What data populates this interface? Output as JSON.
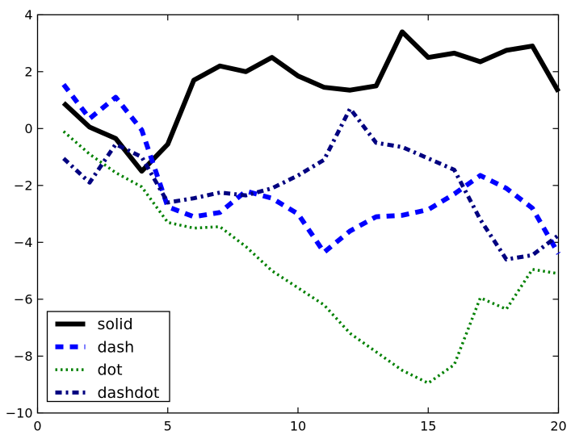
{
  "figure": {
    "background": "#ffffff",
    "axes_background": "#ffffff",
    "frame_color": "#000000"
  },
  "chart_data": {
    "type": "line",
    "title": "",
    "xlabel": "",
    "ylabel": "",
    "xlim": [
      0,
      20
    ],
    "ylim": [
      -10,
      4
    ],
    "grid": false,
    "tick_direction": "in",
    "xticks": {
      "values": [
        0,
        5,
        10,
        15,
        20
      ],
      "labels": [
        "0",
        "5",
        "10",
        "15",
        "20"
      ]
    },
    "yticks": {
      "values": [
        -10,
        -8,
        -6,
        -4,
        -2,
        0,
        2,
        4
      ],
      "labels": [
        "−10",
        "−8",
        "−6",
        "−4",
        "−2",
        "0",
        "2",
        "4"
      ]
    },
    "x": [
      1,
      2,
      3,
      4,
      5,
      6,
      7,
      8,
      9,
      10,
      11,
      12,
      13,
      14,
      15,
      16,
      17,
      18,
      19,
      20
    ],
    "series": [
      {
        "name": "solid",
        "color": "#000000",
        "linestyle": "solid",
        "values": [
          0.9,
          0.05,
          -0.35,
          -1.5,
          -0.55,
          1.7,
          2.2,
          2.0,
          2.5,
          1.85,
          1.45,
          1.35,
          1.5,
          3.4,
          2.5,
          2.65,
          2.35,
          2.75,
          2.9,
          1.3
        ]
      },
      {
        "name": "dash",
        "color": "#0000ff",
        "linestyle": "dash",
        "values": [
          1.55,
          0.35,
          1.1,
          -0.05,
          -2.75,
          -3.1,
          -2.95,
          -2.2,
          -2.45,
          -3.0,
          -4.35,
          -3.6,
          -3.1,
          -3.05,
          -2.85,
          -2.3,
          -1.65,
          -2.1,
          -2.8,
          -4.4
        ]
      },
      {
        "name": "dot",
        "color": "#008000",
        "linestyle": "dot",
        "values": [
          -0.1,
          -0.9,
          -1.55,
          -2.05,
          -3.3,
          -3.5,
          -3.45,
          -4.15,
          -5.0,
          -5.6,
          -6.2,
          -7.2,
          -7.85,
          -8.5,
          -8.95,
          -8.3,
          -5.95,
          -6.35,
          -4.95,
          -5.1
        ]
      },
      {
        "name": "dashdot",
        "color": "#000080",
        "linestyle": "dashdot",
        "values": [
          -1.05,
          -1.9,
          -0.55,
          -1.0,
          -2.6,
          -2.45,
          -2.25,
          -2.35,
          -2.1,
          -1.65,
          -1.1,
          0.7,
          -0.5,
          -0.65,
          -1.05,
          -1.45,
          -3.2,
          -4.6,
          -4.45,
          -3.75
        ]
      }
    ],
    "legend": {
      "position": "lower left",
      "labels": [
        "solid",
        "dash",
        "dot",
        "dashdot"
      ]
    }
  }
}
